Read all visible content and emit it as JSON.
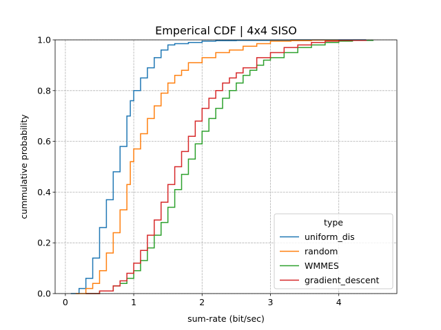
{
  "chart_data": {
    "type": "line",
    "title": "Emperical CDF | 4x4 SISO",
    "xlabel": "sum-rate (bit/sec)",
    "ylabel": "cummulative probability",
    "xlim": [
      -0.15,
      4.85
    ],
    "ylim": [
      0,
      1
    ],
    "xticks": [
      0,
      1,
      2,
      3,
      4
    ],
    "xtick_labels": [
      "0",
      "1",
      "2",
      "3",
      "4"
    ],
    "yticks": [
      0,
      0.2,
      0.4,
      0.6,
      0.8,
      1.0
    ],
    "ytick_labels": [
      "0.0",
      "0.2",
      "0.4",
      "0.6",
      "0.8",
      "1.0"
    ],
    "grid": true,
    "legend": {
      "title": "type",
      "placement": "lower-right"
    },
    "series": [
      {
        "name": "uniform_dis",
        "color": "#1f77b4",
        "x": [
          0.08,
          0.2,
          0.3,
          0.4,
          0.5,
          0.6,
          0.7,
          0.8,
          0.9,
          0.95,
          1.0,
          1.1,
          1.2,
          1.3,
          1.4,
          1.5,
          1.6,
          1.8,
          2.0,
          2.2,
          2.5,
          3.0,
          3.3,
          3.6,
          4.4
        ],
        "y": [
          0.0,
          0.02,
          0.06,
          0.14,
          0.26,
          0.37,
          0.48,
          0.58,
          0.7,
          0.76,
          0.8,
          0.85,
          0.89,
          0.93,
          0.96,
          0.98,
          0.985,
          0.99,
          0.995,
          0.997,
          0.998,
          0.999,
          1.0,
          1.0,
          1.0
        ]
      },
      {
        "name": "random",
        "color": "#ff7f0e",
        "x": [
          0.15,
          0.3,
          0.4,
          0.5,
          0.6,
          0.7,
          0.8,
          0.9,
          0.95,
          1.0,
          1.1,
          1.2,
          1.3,
          1.4,
          1.5,
          1.6,
          1.7,
          1.8,
          2.0,
          2.2,
          2.4,
          2.6,
          2.8,
          3.0,
          3.3,
          3.6,
          4.0
        ],
        "y": [
          0.0,
          0.02,
          0.04,
          0.09,
          0.16,
          0.24,
          0.33,
          0.43,
          0.52,
          0.57,
          0.63,
          0.69,
          0.74,
          0.79,
          0.83,
          0.86,
          0.88,
          0.91,
          0.93,
          0.95,
          0.96,
          0.975,
          0.985,
          0.995,
          0.997,
          0.999,
          1.0
        ]
      },
      {
        "name": "WMMES",
        "color": "#2ca02c",
        "x": [
          0.3,
          0.5,
          0.7,
          0.8,
          0.9,
          1.0,
          1.1,
          1.2,
          1.3,
          1.4,
          1.5,
          1.6,
          1.7,
          1.8,
          1.9,
          2.0,
          2.1,
          2.2,
          2.3,
          2.4,
          2.5,
          2.6,
          2.7,
          2.8,
          2.9,
          3.0,
          3.2,
          3.4,
          3.6,
          3.8,
          4.0,
          4.2,
          4.5
        ],
        "y": [
          0.0,
          0.01,
          0.03,
          0.04,
          0.06,
          0.09,
          0.13,
          0.18,
          0.23,
          0.28,
          0.34,
          0.41,
          0.47,
          0.53,
          0.59,
          0.64,
          0.69,
          0.73,
          0.77,
          0.8,
          0.83,
          0.86,
          0.88,
          0.9,
          0.92,
          0.93,
          0.95,
          0.97,
          0.98,
          0.99,
          0.995,
          0.998,
          1.0
        ]
      },
      {
        "name": "gradient_descent",
        "color": "#d62728",
        "x": [
          0.3,
          0.5,
          0.7,
          0.8,
          0.9,
          1.0,
          1.1,
          1.2,
          1.3,
          1.4,
          1.5,
          1.6,
          1.7,
          1.8,
          1.9,
          2.0,
          2.1,
          2.2,
          2.3,
          2.4,
          2.5,
          2.6,
          2.8,
          3.0,
          3.2,
          3.4,
          3.6,
          3.8,
          4.0,
          4.4
        ],
        "y": [
          0.0,
          0.01,
          0.03,
          0.05,
          0.08,
          0.12,
          0.17,
          0.23,
          0.29,
          0.36,
          0.43,
          0.5,
          0.56,
          0.62,
          0.68,
          0.73,
          0.77,
          0.8,
          0.83,
          0.85,
          0.87,
          0.89,
          0.93,
          0.95,
          0.97,
          0.98,
          0.99,
          0.995,
          0.998,
          1.0
        ]
      }
    ]
  }
}
